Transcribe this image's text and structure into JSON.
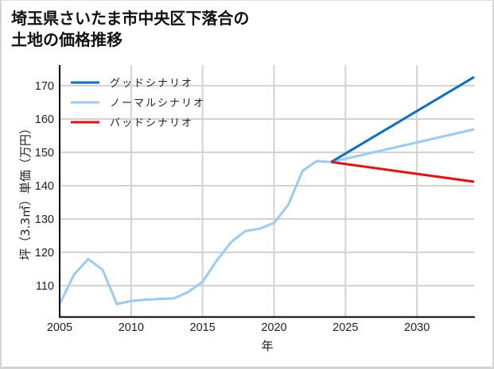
{
  "chart_data": {
    "type": "line",
    "title": "埼玉県さいたま市中央区下落合の土地の価格推移",
    "title_lines": [
      "埼玉県さいたま市中央区下落合の",
      "土地の価格推移"
    ],
    "xlabel": "年",
    "ylabel": "坪（3.3㎡）単価（万円）",
    "xlim": [
      2005,
      2034
    ],
    "ylim": [
      100.7,
      176
    ],
    "x_ticks": [
      2005,
      2010,
      2015,
      2020,
      2025,
      2030
    ],
    "y_ticks": [
      110,
      120,
      130,
      140,
      150,
      160,
      170
    ],
    "grid": true,
    "legend_position": "upper left",
    "series": [
      {
        "name": "グッドシナリオ",
        "color": "#0a70c4",
        "x": [
          2024,
          2034
        ],
        "values": [
          147.1,
          172.6
        ]
      },
      {
        "name": "ノーマルシナリオ",
        "color": "#99cbf9",
        "x": [
          2005,
          2006,
          2007,
          2008,
          2009,
          2010,
          2011,
          2012,
          2013,
          2014,
          2015,
          2016,
          2017,
          2018,
          2019,
          2020,
          2021,
          2022,
          2023,
          2024,
          2034
        ],
        "values": [
          104.5,
          113.3,
          118.0,
          114.8,
          104.5,
          105.4,
          105.8,
          106.0,
          106.2,
          108.1,
          111.2,
          117.6,
          123.1,
          126.4,
          127.1,
          128.8,
          134.3,
          144.5,
          147.4,
          147.1,
          156.9
        ]
      },
      {
        "name": "バッドシナリオ",
        "color": "#f00a0a",
        "x": [
          2024,
          2034
        ],
        "values": [
          147.1,
          141.2
        ]
      }
    ]
  }
}
